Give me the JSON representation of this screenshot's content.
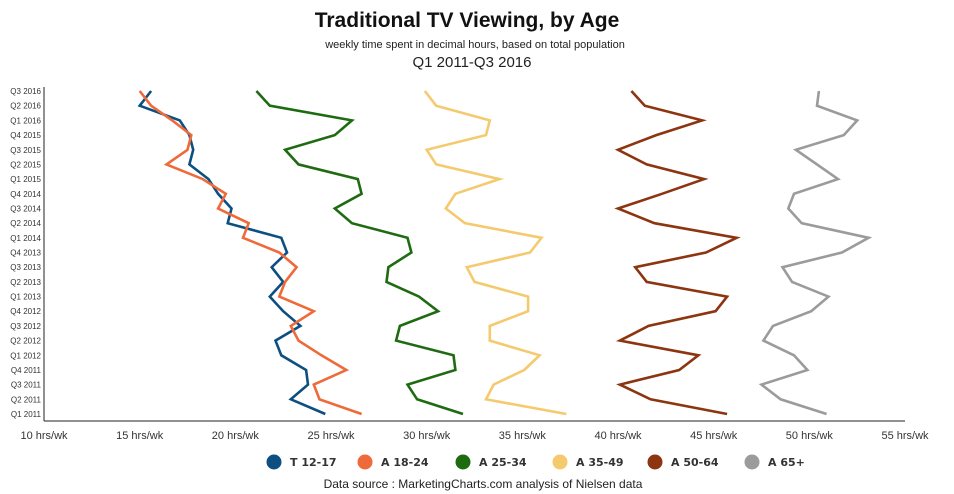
{
  "chart_data": {
    "type": "line",
    "title": "Traditional TV Viewing, by Age",
    "subtitle": "weekly time spent in decimal hours, based on total population",
    "period": "Q1 2011-Q3 2016",
    "source": "Data source : MarketingCharts.com analysis of Nielsen data",
    "orientation": "horizontal-value-axis",
    "y_categories": [
      "Q1 2011",
      "Q2 2011",
      "Q3 2011",
      "Q4 2011",
      "Q1 2012",
      "Q2 2012",
      "Q3 2012",
      "Q4 2012",
      "Q1 2013",
      "Q2 2013",
      "Q3 2013",
      "Q4 2013",
      "Q1 2014",
      "Q2 2014",
      "Q3 2014",
      "Q4 2014",
      "Q1 2015",
      "Q2 2015",
      "Q3 2015",
      "Q4 2015",
      "Q1 2016",
      "Q2 2016",
      "Q3 2016"
    ],
    "x_range": [
      10,
      55
    ],
    "x_ticks": [
      10,
      15,
      20,
      25,
      30,
      35,
      40,
      45,
      50,
      55
    ],
    "x_tick_suffix": " hrs/wk",
    "grid": false,
    "legend_position": "bottom",
    "series": [
      {
        "name": "T 12-17",
        "color": "#0d4f80",
        "values": [
          24.7,
          22.9,
          23.8,
          23.7,
          22.4,
          22.1,
          23.4,
          22.5,
          21.8,
          22.5,
          21.9,
          22.7,
          22.4,
          19.6,
          19.8,
          19.1,
          18.6,
          17.6,
          17.8,
          17.6,
          17.1,
          15.0,
          15.6
        ]
      },
      {
        "name": "A 18-24",
        "color": "#ef6a3a",
        "values": [
          26.6,
          24.4,
          24.1,
          25.8,
          24.5,
          23.3,
          22.9,
          24.1,
          22.3,
          22.6,
          23.2,
          22.3,
          20.4,
          20.7,
          19.1,
          19.5,
          18.3,
          16.4,
          17.5,
          17.7,
          16.7,
          15.6,
          15.0
        ]
      },
      {
        "name": "A 25-34",
        "color": "#1f6b12",
        "values": [
          31.9,
          29.5,
          29.0,
          31.5,
          31.4,
          28.4,
          28.6,
          30.6,
          29.6,
          27.9,
          28.0,
          29.2,
          29.0,
          26.1,
          25.2,
          26.6,
          26.4,
          23.3,
          22.6,
          25.2,
          26.1,
          21.8,
          21.1
        ]
      },
      {
        "name": "A 35-49",
        "color": "#f5ca6e",
        "values": [
          37.3,
          33.1,
          33.5,
          35.1,
          35.9,
          33.3,
          33.3,
          35.3,
          35.3,
          32.5,
          32.1,
          35.4,
          36.0,
          32.0,
          31.0,
          31.5,
          33.8,
          30.5,
          30.0,
          33.1,
          33.3,
          30.5,
          29.9
        ]
      },
      {
        "name": "A 50-64",
        "color": "#8c3510",
        "values": [
          45.7,
          41.7,
          40.1,
          43.2,
          44.2,
          40.1,
          41.6,
          45.1,
          45.7,
          41.5,
          40.9,
          44.6,
          46.2,
          41.9,
          40.0,
          42.3,
          44.5,
          41.5,
          40.0,
          42.0,
          44.4,
          41.4,
          40.7
        ]
      },
      {
        "name": "A 65+",
        "color": "#9b9b9b",
        "values": [
          50.9,
          48.5,
          47.5,
          49.9,
          49.2,
          47.6,
          48.1,
          50.1,
          51.0,
          49.1,
          48.6,
          51.7,
          53.1,
          49.6,
          48.9,
          49.2,
          51.5,
          50.4,
          49.3,
          51.8,
          52.5,
          50.4,
          50.5
        ]
      }
    ]
  }
}
